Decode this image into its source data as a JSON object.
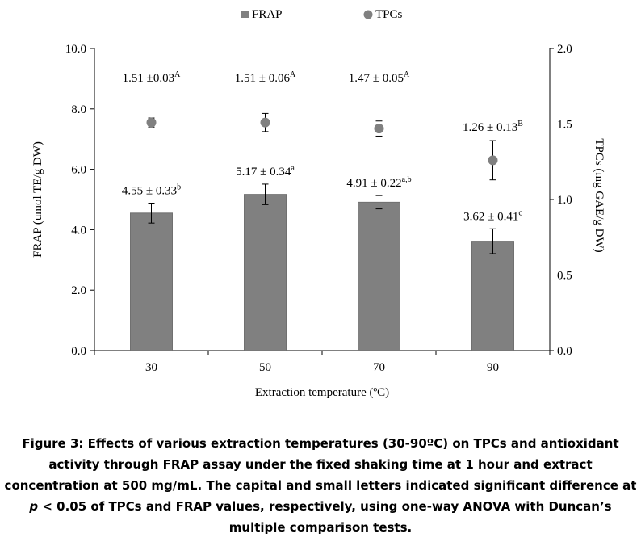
{
  "chart_data": {
    "type": "bar",
    "categories": [
      "30",
      "50",
      "70",
      "90"
    ],
    "xlabel": "Extraction temperature (ºC)",
    "ylabel_left": "FRAP (umol TE/g DW)",
    "ylabel_right": "TPCs (mg GAE/g DW)",
    "ylim_left": [
      0,
      10
    ],
    "ylim_right": [
      0,
      2
    ],
    "yticks_left": [
      "0.0",
      "2.0",
      "4.0",
      "6.0",
      "8.0",
      "10.0"
    ],
    "yticks_right": [
      "0.0",
      "0.5",
      "1.0",
      "1.5",
      "2.0"
    ],
    "legend_position": "top",
    "grid": false,
    "colors": {
      "bar": "#808080",
      "bar_edge": "#707070",
      "marker": "#808080",
      "axis": "#000000"
    },
    "series": [
      {
        "name": "FRAP",
        "kind": "bar",
        "axis": "left",
        "values": [
          4.55,
          5.17,
          4.91,
          3.62
        ],
        "errors": [
          0.33,
          0.34,
          0.22,
          0.41
        ],
        "labels": [
          {
            "text": "4.55 ± 0.33",
            "sup": "b"
          },
          {
            "text": "5.17 ± 0.34",
            "sup": "a"
          },
          {
            "text": "4.91 ± 0.22",
            "sup": "a,b"
          },
          {
            "text": "3.62 ± 0.41",
            "sup": "c"
          }
        ]
      },
      {
        "name": "TPCs",
        "kind": "scatter",
        "axis": "right",
        "values": [
          1.51,
          1.51,
          1.47,
          1.26
        ],
        "errors": [
          0.03,
          0.06,
          0.05,
          0.13
        ],
        "labels": [
          {
            "text": "1.51 ±0.03",
            "sup": "A"
          },
          {
            "text": "1.51 ± 0.06",
            "sup": "A"
          },
          {
            "text": "1.47 ± 0.05",
            "sup": "A"
          },
          {
            "text": "1.26 ± 0.13",
            "sup": "B"
          }
        ]
      }
    ]
  },
  "caption": {
    "part1": "Figure 3: Effects of various extraction temperatures (30-90ºC) on TPCs and antioxidant activity through FRAP assay under the fixed shaking time at 1 hour and extract concentration at 500 mg/mL. The capital and small letters indicated significant difference at ",
    "italic": "p",
    "part2": " < 0.05 of TPCs and FRAP values, respectively, using one-way ANOVA with Duncan’s multiple comparison tests."
  }
}
